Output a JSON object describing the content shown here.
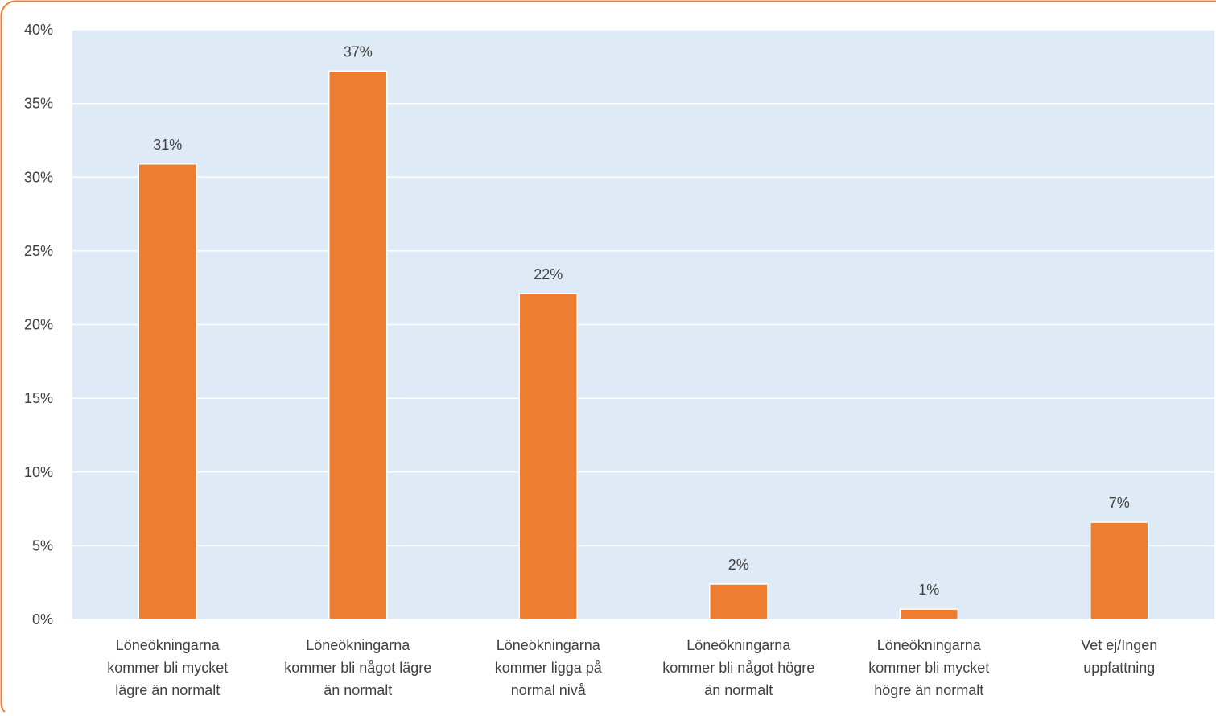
{
  "chart_data": {
    "type": "bar",
    "categories": [
      [
        "Löneökningarna",
        "kommer bli mycket",
        "lägre än normalt"
      ],
      [
        "Löneökningarna",
        "kommer bli något lägre",
        "än normalt"
      ],
      [
        "Löneökningarna",
        "kommer ligga på",
        "normal nivå"
      ],
      [
        "Löneökningarna",
        "kommer bli något högre",
        "än normalt"
      ],
      [
        "Löneökningarna",
        "kommer bli mycket",
        "högre än normalt"
      ],
      [
        "Vet ej/Ingen",
        "uppfattning"
      ]
    ],
    "values": [
      30.9,
      37.2,
      22.1,
      2.4,
      0.7,
      6.6
    ],
    "data_labels": [
      "31%",
      "37%",
      "22%",
      "2%",
      "1%",
      "7%"
    ],
    "ylim": [
      0,
      40
    ],
    "yticks": [
      0,
      5,
      10,
      15,
      20,
      25,
      30,
      35,
      40
    ],
    "ytick_labels": [
      "0%",
      "5%",
      "10%",
      "15%",
      "20%",
      "25%",
      "30%",
      "35%",
      "40%"
    ],
    "grid": true,
    "colors": {
      "bar": "#ED7D31",
      "bar_stroke": "#ffffff",
      "plot_bg": "#DEEAF6",
      "grid": "#ffffff",
      "border": "#ED7D31",
      "text": "#404040"
    }
  }
}
